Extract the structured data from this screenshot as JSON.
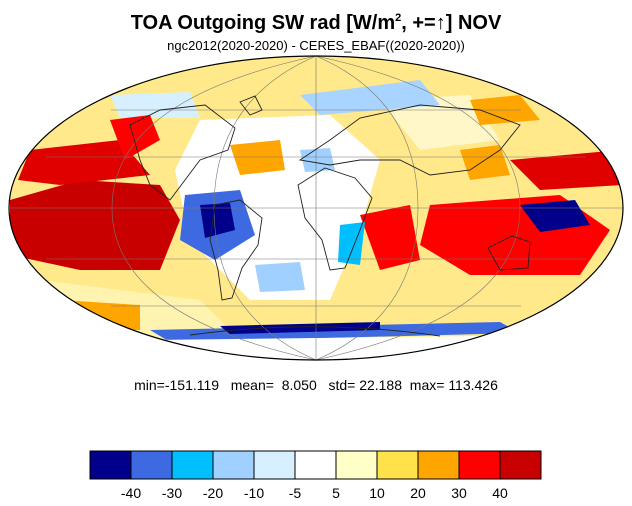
{
  "title": {
    "prefix": "TOA Outgoing SW rad [W/m",
    "sup": "2",
    "suffix": ", +=↑] NOV"
  },
  "subtitle": "ngc2012(2020-2020) - CERES_EBAF((2020-2020))",
  "stats": {
    "min_label": "min=",
    "min": "-151.119",
    "mean_label": "mean=",
    "mean": "8.050",
    "std_label": "std=",
    "std": "22.188",
    "max_label": "max=",
    "max": "113.426"
  },
  "colorbar": {
    "colors": [
      "#00008b",
      "#3d6ae0",
      "#00bfff",
      "#a0d0ff",
      "#d6f0ff",
      "#ffffff",
      "#ffffc8",
      "#ffe14a",
      "#ffa500",
      "#ff0000",
      "#c80000"
    ],
    "labels": [
      "-40",
      "-30",
      "-20",
      "-10",
      "-5",
      "5",
      "10",
      "20",
      "30",
      "40"
    ]
  }
}
